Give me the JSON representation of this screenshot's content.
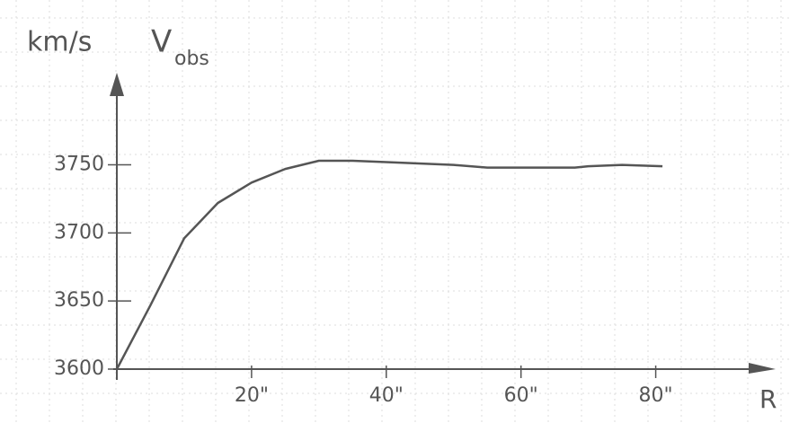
{
  "chart_data": {
    "type": "line",
    "y_label": "km/s",
    "quantity": "V",
    "quantity_sub": "obs",
    "x_label": "R",
    "x": [
      0,
      5,
      10,
      15,
      20,
      25,
      30,
      35,
      40,
      50,
      55,
      60,
      68,
      70,
      75,
      81
    ],
    "values": [
      3600,
      3647,
      3696,
      3722,
      3737,
      3747,
      3753,
      3753,
      3752,
      3750,
      3748,
      3748,
      3748,
      3749,
      3750,
      3749
    ],
    "color": "#555555",
    "xlim": [
      0,
      97
    ],
    "ylim": [
      3600,
      3815
    ],
    "xticks": [
      {
        "value": 20,
        "label": "20\""
      },
      {
        "value": 40,
        "label": "40\""
      },
      {
        "value": 60,
        "label": "60\""
      },
      {
        "value": 80,
        "label": "80\""
      }
    ],
    "yticks": [
      3600,
      3650,
      3700,
      3750
    ]
  }
}
